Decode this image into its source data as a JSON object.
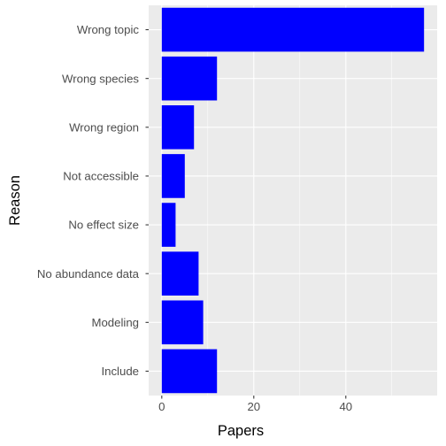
{
  "chart_data": {
    "type": "bar",
    "orientation": "horizontal",
    "categories": [
      "Wrong topic",
      "Wrong species",
      "Wrong region",
      "Not accessible",
      "No effect size",
      "No abundance data",
      "Modeling",
      "Include"
    ],
    "values": [
      57,
      12,
      7,
      5,
      3,
      8,
      9,
      12
    ],
    "xlabel": "Papers",
    "ylabel": "Reason",
    "xlim": [
      -2.85,
      59.85
    ],
    "xticks": [
      0,
      20,
      40
    ],
    "grid": true,
    "bar_color": "#0000ff",
    "panel_color": "#ebebeb",
    "grid_color": "#ffffff"
  }
}
